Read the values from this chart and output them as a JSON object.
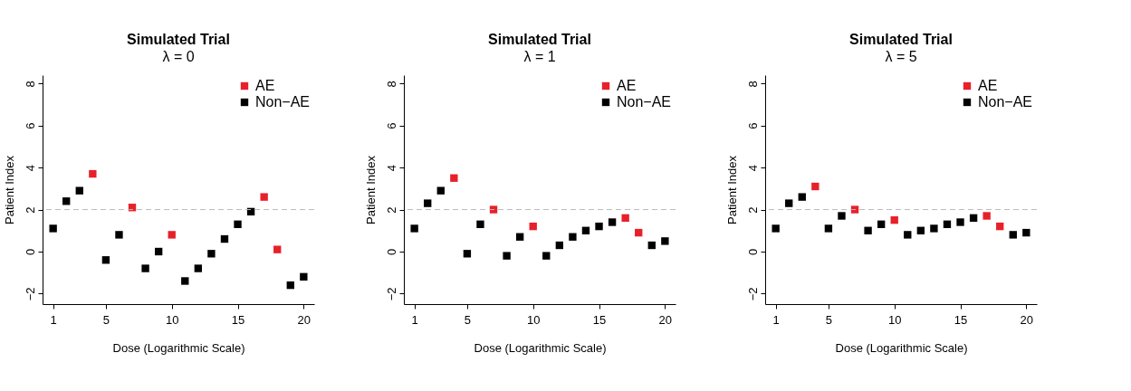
{
  "chart_data": [
    {
      "type": "scatter",
      "title": "Simulated Trial",
      "subtitle": "λ = 0",
      "xlabel": "Dose (Logarithmic Scale)",
      "ylabel": "Patient Index",
      "xlim": [
        0.2,
        20.8
      ],
      "ylim": [
        -2.5,
        8.4
      ],
      "xticks": [
        1,
        5,
        10,
        15,
        20
      ],
      "yticks": [
        -2,
        0,
        2,
        4,
        6,
        8
      ],
      "grid": false,
      "legend": "top right",
      "marker": "square",
      "ref_lines": [
        {
          "axis": "y",
          "value": 2,
          "color": "#bbbbbb",
          "line_style": "dashed"
        }
      ],
      "series": [
        {
          "name": "AE",
          "color": "#e8202a",
          "x": [
            4,
            7,
            10,
            17,
            18
          ],
          "values": [
            3.7,
            2.1,
            0.8,
            2.6,
            0.1
          ]
        },
        {
          "name": "Non−AE",
          "color": "#000000",
          "x": [
            1,
            2,
            3,
            5,
            6,
            8,
            9,
            11,
            12,
            13,
            14,
            15,
            16,
            19,
            20
          ],
          "values": [
            1.1,
            2.4,
            2.9,
            -0.4,
            0.8,
            -0.8,
            0.0,
            -1.4,
            -0.8,
            -0.1,
            0.6,
            1.3,
            1.9,
            -1.6,
            -1.2
          ]
        }
      ]
    },
    {
      "type": "scatter",
      "title": "Simulated Trial",
      "subtitle": "λ = 1",
      "xlabel": "Dose (Logarithmic Scale)",
      "ylabel": "Patient Index",
      "xlim": [
        0.2,
        20.8
      ],
      "ylim": [
        -2.5,
        8.4
      ],
      "xticks": [
        1,
        5,
        10,
        15,
        20
      ],
      "yticks": [
        -2,
        0,
        2,
        4,
        6,
        8
      ],
      "grid": false,
      "legend": "top right",
      "marker": "square",
      "ref_lines": [
        {
          "axis": "y",
          "value": 2,
          "color": "#bbbbbb",
          "line_style": "dashed"
        }
      ],
      "series": [
        {
          "name": "AE",
          "color": "#e8202a",
          "x": [
            4,
            7,
            10,
            17,
            18
          ],
          "values": [
            3.5,
            2.0,
            1.2,
            1.6,
            0.9
          ]
        },
        {
          "name": "Non−AE",
          "color": "#000000",
          "x": [
            1,
            2,
            3,
            5,
            6,
            8,
            9,
            11,
            12,
            13,
            14,
            15,
            16,
            19,
            20
          ],
          "values": [
            1.1,
            2.3,
            2.9,
            -0.1,
            1.3,
            -0.2,
            0.7,
            -0.2,
            0.3,
            0.7,
            1.0,
            1.2,
            1.4,
            0.3,
            0.5
          ]
        }
      ]
    },
    {
      "type": "scatter",
      "title": "Simulated Trial",
      "subtitle": "λ = 5",
      "xlabel": "Dose (Logarithmic Scale)",
      "ylabel": "Patient Index",
      "xlim": [
        0.2,
        20.8
      ],
      "ylim": [
        -2.5,
        8.4
      ],
      "xticks": [
        1,
        5,
        10,
        15,
        20
      ],
      "yticks": [
        -2,
        0,
        2,
        4,
        6,
        8
      ],
      "grid": false,
      "legend": "top right",
      "marker": "square",
      "ref_lines": [
        {
          "axis": "y",
          "value": 2,
          "color": "#bbbbbb",
          "line_style": "dashed"
        }
      ],
      "series": [
        {
          "name": "AE",
          "color": "#e8202a",
          "x": [
            4,
            7,
            10,
            17,
            18
          ],
          "values": [
            3.1,
            2.0,
            1.5,
            1.7,
            1.2
          ]
        },
        {
          "name": "Non−AE",
          "color": "#000000",
          "x": [
            1,
            2,
            3,
            5,
            6,
            8,
            9,
            11,
            12,
            13,
            14,
            15,
            16,
            19,
            20
          ],
          "values": [
            1.1,
            2.3,
            2.6,
            1.1,
            1.7,
            1.0,
            1.3,
            0.8,
            1.0,
            1.1,
            1.3,
            1.4,
            1.6,
            0.8,
            0.9
          ]
        }
      ]
    }
  ]
}
